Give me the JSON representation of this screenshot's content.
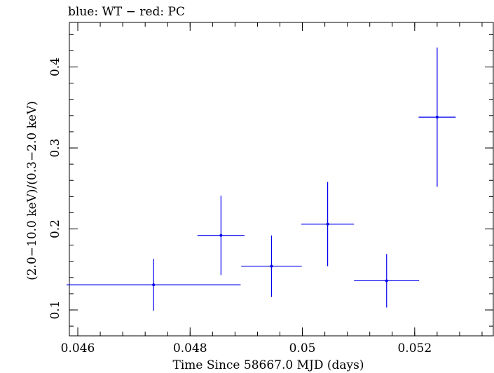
{
  "chart_data": {
    "type": "scatter",
    "title": "blue: WT − red: PC",
    "xlabel": "Time Since 58667.0 MJD (days)",
    "ylabel": "(2.0−10.0 keV)/(0.3−2.0 keV)",
    "xlim": [
      0.04585,
      0.0534
    ],
    "ylim": [
      0.068,
      0.455
    ],
    "x_ticks": [
      {
        "value": 0.046,
        "label": "0.046"
      },
      {
        "value": 0.048,
        "label": "0.048"
      },
      {
        "value": 0.05,
        "label": "0.05"
      },
      {
        "value": 0.052,
        "label": "0.052"
      }
    ],
    "y_ticks": [
      {
        "value": 0.1,
        "label": "0.1"
      },
      {
        "value": 0.2,
        "label": "0.2"
      },
      {
        "value": 0.3,
        "label": "0.3"
      },
      {
        "value": 0.4,
        "label": "0.4"
      }
    ],
    "series": [
      {
        "color": "#0000ee",
        "points": [
          {
            "x": 0.04735,
            "xerr": 0.00155,
            "y": 0.131,
            "yerr": 0.032
          },
          {
            "x": 0.04855,
            "xerr": 0.00042,
            "y": 0.192,
            "yerr": 0.049
          },
          {
            "x": 0.04945,
            "xerr": 0.00054,
            "y": 0.154,
            "yerr": 0.038
          },
          {
            "x": 0.05045,
            "xerr": 0.00047,
            "y": 0.206,
            "yerr": 0.052
          },
          {
            "x": 0.0515,
            "xerr": 0.00058,
            "y": 0.136,
            "yerr": 0.033
          },
          {
            "x": 0.0524,
            "xerr": 0.00033,
            "y": 0.338,
            "yerr": 0.086
          }
        ]
      }
    ],
    "grid": false,
    "legend": "none"
  }
}
